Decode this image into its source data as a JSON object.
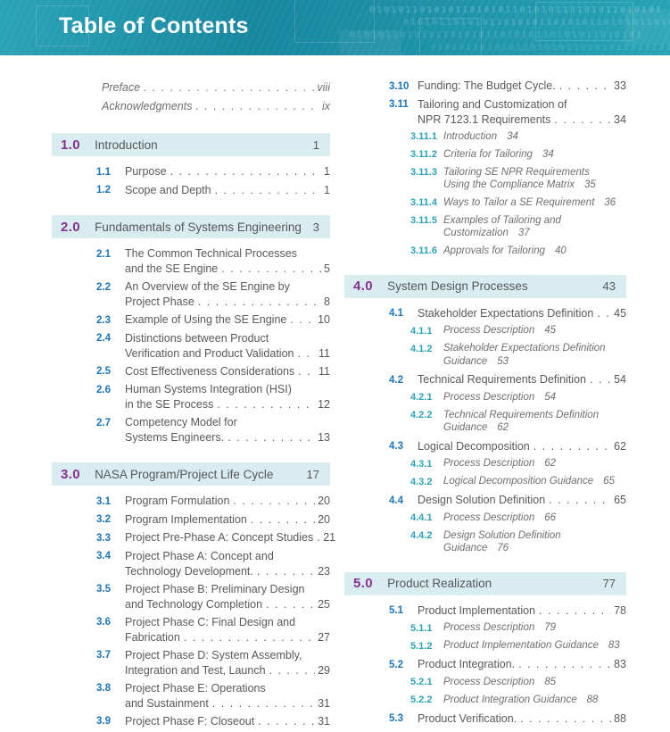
{
  "header": {
    "title": "Table of Contents",
    "binary_pattern": "01010110101011010101101010110101011010101",
    "colors": {
      "band_teal": "#1787A0",
      "section_bar_bg": "#D9EDF1",
      "section_number": "#8A2F8D",
      "entry_number_blue": "#1B75BC",
      "subentry_number_teal": "#2AA4B6",
      "body_text": "#58595B"
    }
  },
  "columns": {
    "left": [
      {
        "type": "front",
        "label": "Preface",
        "page": "viii"
      },
      {
        "type": "front",
        "label": "Acknowledgments",
        "page": "ix"
      },
      {
        "type": "section",
        "number": "1.0",
        "title": "Introduction",
        "page": "1"
      },
      {
        "type": "sub",
        "number": "1.1",
        "lines": [
          "Purpose"
        ],
        "page": "1"
      },
      {
        "type": "sub",
        "number": "1.2",
        "lines": [
          "Scope and Depth"
        ],
        "page": "1"
      },
      {
        "type": "section",
        "number": "2.0",
        "title": "Fundamentals of Systems Engineering",
        "page": "3"
      },
      {
        "type": "sub",
        "number": "2.1",
        "lines": [
          "The Common Technical Processes",
          "and the SE Engine"
        ],
        "page": "5"
      },
      {
        "type": "sub",
        "number": "2.2",
        "lines": [
          "An Overview of the SE Engine by",
          "Project Phase"
        ],
        "page": "8"
      },
      {
        "type": "sub",
        "number": "2.3",
        "lines": [
          "Example of Using the SE Engine"
        ],
        "page": "10"
      },
      {
        "type": "sub",
        "number": "2.4",
        "lines": [
          "Distinctions between Product",
          "Verification and Product Validation"
        ],
        "page": "11"
      },
      {
        "type": "sub",
        "number": "2.5",
        "lines": [
          "Cost Effectiveness Considerations"
        ],
        "page": "11"
      },
      {
        "type": "sub",
        "number": "2.6",
        "lines": [
          "Human Systems Integration (HSI)",
          "in the SE Process"
        ],
        "page": "12"
      },
      {
        "type": "sub",
        "number": "2.7",
        "lines": [
          "Competency Model for",
          "Systems Engineers."
        ],
        "page": "13"
      },
      {
        "type": "section",
        "number": "3.0",
        "title": "NASA Program/Project Life Cycle",
        "page": "17"
      },
      {
        "type": "sub",
        "number": "3.1",
        "lines": [
          "Program Formulation"
        ],
        "page": "20"
      },
      {
        "type": "sub",
        "number": "3.2",
        "lines": [
          "Program Implementation"
        ],
        "page": "20"
      },
      {
        "type": "sub",
        "number": "3.3",
        "lines": [
          "Project Pre-Phase A: Concept Studies"
        ],
        "page": "21"
      },
      {
        "type": "sub",
        "number": "3.4",
        "lines": [
          "Project Phase A: Concept and",
          "Technology Development."
        ],
        "page": "23"
      },
      {
        "type": "sub",
        "number": "3.5",
        "lines": [
          "Project Phase B: Preliminary Design",
          "and Technology Completion"
        ],
        "page": "25"
      },
      {
        "type": "sub",
        "number": "3.6",
        "lines": [
          "Project Phase C: Final Design and",
          "Fabrication"
        ],
        "page": "27"
      },
      {
        "type": "sub",
        "number": "3.7",
        "lines": [
          "Project Phase D: System Assembly,",
          "Integration and Test, Launch"
        ],
        "page": "29"
      },
      {
        "type": "sub",
        "number": "3.8",
        "lines": [
          "Project Phase E: Operations",
          "and Sustainment"
        ],
        "page": "31"
      },
      {
        "type": "sub",
        "number": "3.9",
        "lines": [
          "Project Phase F: Closeout"
        ],
        "page": "31"
      }
    ],
    "right": [
      {
        "type": "sub",
        "number": "3.10",
        "lines": [
          "Funding: The Budget Cycle."
        ],
        "page": "33"
      },
      {
        "type": "sub",
        "number": "3.11",
        "lines": [
          "Tailoring and Customization of",
          "NPR 7123.1 Requirements"
        ],
        "page": "34"
      },
      {
        "type": "sub3",
        "number": "3.11.1",
        "lines": [
          "Introduction"
        ],
        "page": "34"
      },
      {
        "type": "sub3",
        "number": "3.11.2",
        "lines": [
          "Criteria for Tailoring"
        ],
        "page": "34"
      },
      {
        "type": "sub3",
        "number": "3.11.3",
        "lines": [
          "Tailoring SE NPR Requirements",
          "Using the Compliance Matrix"
        ],
        "page": "35"
      },
      {
        "type": "sub3",
        "number": "3.11.4",
        "lines": [
          "Ways to Tailor a SE Requirement"
        ],
        "page": "36"
      },
      {
        "type": "sub3",
        "number": "3.11.5",
        "lines": [
          "Examples of Tailoring and",
          "Customization"
        ],
        "page": "37"
      },
      {
        "type": "sub3",
        "number": "3.11.6",
        "lines": [
          "Approvals for Tailoring"
        ],
        "page": "40"
      },
      {
        "type": "section",
        "number": "4.0",
        "title": "System Design Processes",
        "page": "43"
      },
      {
        "type": "sub",
        "number": "4.1",
        "lines": [
          "Stakeholder Expectations Definition"
        ],
        "page": "45"
      },
      {
        "type": "sub3",
        "number": "4.1.1",
        "lines": [
          "Process Description"
        ],
        "page": "45"
      },
      {
        "type": "sub3",
        "number": "4.1.2",
        "lines": [
          "Stakeholder Expectations Definition",
          "Guidance"
        ],
        "page": "53"
      },
      {
        "type": "sub",
        "number": "4.2",
        "lines": [
          "Technical Requirements Definition"
        ],
        "page": "54"
      },
      {
        "type": "sub3",
        "number": "4.2.1",
        "lines": [
          "Process Description"
        ],
        "page": "54"
      },
      {
        "type": "sub3",
        "number": "4.2.2",
        "lines": [
          "Technical Requirements Definition",
          "Guidance"
        ],
        "page": "62"
      },
      {
        "type": "sub",
        "number": "4.3",
        "lines": [
          "Logical Decomposition"
        ],
        "page": "62"
      },
      {
        "type": "sub3",
        "number": "4.3.1",
        "lines": [
          "Process Description"
        ],
        "page": "62"
      },
      {
        "type": "sub3",
        "number": "4.3.2",
        "lines": [
          "Logical Decomposition Guidance"
        ],
        "page": "65"
      },
      {
        "type": "sub",
        "number": "4.4",
        "lines": [
          "Design Solution Definition"
        ],
        "page": "65"
      },
      {
        "type": "sub3",
        "number": "4.4.1",
        "lines": [
          "Process Description"
        ],
        "page": "66"
      },
      {
        "type": "sub3",
        "number": "4.4.2",
        "lines": [
          "Design Solution Definition Guidance"
        ],
        "page": "76"
      },
      {
        "type": "section",
        "number": "5.0",
        "title": "Product Realization",
        "page": "77"
      },
      {
        "type": "sub",
        "number": "5.1",
        "lines": [
          "Product Implementation"
        ],
        "page": "78"
      },
      {
        "type": "sub3",
        "number": "5.1.1",
        "lines": [
          "Process Description"
        ],
        "page": "79"
      },
      {
        "type": "sub3",
        "number": "5.1.2",
        "lines": [
          "Product Implementation Guidance"
        ],
        "page": "83"
      },
      {
        "type": "sub",
        "number": "5.2",
        "lines": [
          "Product Integration."
        ],
        "page": "83"
      },
      {
        "type": "sub3",
        "number": "5.2.1",
        "lines": [
          "Process Description"
        ],
        "page": "85"
      },
      {
        "type": "sub3",
        "number": "5.2.2",
        "lines": [
          "Product Integration Guidance"
        ],
        "page": "88"
      },
      {
        "type": "sub",
        "number": "5.3",
        "lines": [
          "Product Verification."
        ],
        "page": "88"
      }
    ]
  }
}
